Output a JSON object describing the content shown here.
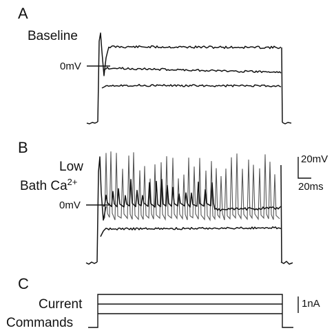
{
  "panels": {
    "a": {
      "letter": "A",
      "condition": "Baseline",
      "zero_label": "0mV"
    },
    "b": {
      "letter": "B",
      "condition_line1": "Low",
      "condition_line2_base": "Bath Ca",
      "condition_line2_sup": "2+",
      "zero_label": "0mV"
    },
    "c": {
      "letter": "C",
      "label_line1": "Current",
      "label_line2": "Commands"
    }
  },
  "scale_bars": {
    "voltage": "20mV",
    "time": "20ms",
    "current": "1nA"
  }
}
